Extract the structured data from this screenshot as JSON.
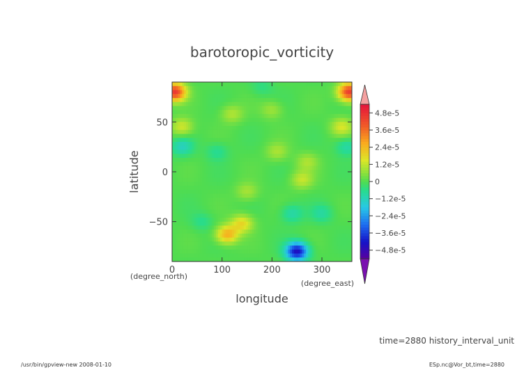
{
  "chart_data": {
    "type": "heatmap",
    "title": "barotoropic_vorticity",
    "xlabel": "longitude",
    "ylabel": "latitude",
    "x_unit": "(degree_east)",
    "y_unit": "(degree_north)",
    "xlim": [
      0,
      360
    ],
    "ylim": [
      -90,
      90
    ],
    "x_ticks": [
      0,
      100,
      200,
      300
    ],
    "y_ticks": [
      50,
      0,
      -50
    ],
    "colorbar": {
      "min": -5.4e-05,
      "max": 5.4e-05,
      "ticks": [
        {
          "value": 4.8e-05,
          "label": "4.8e-5"
        },
        {
          "value": 3.6e-05,
          "label": "3.6e-5"
        },
        {
          "value": 2.4e-05,
          "label": "2.4e-5"
        },
        {
          "value": 1.2e-05,
          "label": "1.2e-5"
        },
        {
          "value": 0,
          "label": "0"
        },
        {
          "value": -1.2e-05,
          "label": "−1.2e-5"
        },
        {
          "value": -2.4e-05,
          "label": "−2.4e-5"
        },
        {
          "value": -3.6e-05,
          "label": "−3.6e-5"
        },
        {
          "value": -4.8e-05,
          "label": "−4.8e-5"
        }
      ],
      "over_color": "#f4a0a0",
      "under_color": "#7a10b0"
    },
    "features": [
      {
        "lon": 5,
        "lat": 80,
        "value": 4.6e-05
      },
      {
        "lon": 355,
        "lat": 80,
        "value": 4.6e-05
      },
      {
        "lon": 20,
        "lat": 45,
        "value": 1.4e-05
      },
      {
        "lon": 340,
        "lat": 45,
        "value": 1.4e-05
      },
      {
        "lon": 120,
        "lat": 58,
        "value": 1e-05
      },
      {
        "lon": 200,
        "lat": 62,
        "value": 8e-06
      },
      {
        "lon": 210,
        "lat": 20,
        "value": 9e-06
      },
      {
        "lon": 270,
        "lat": 10,
        "value": 9e-06
      },
      {
        "lon": 260,
        "lat": -8,
        "value": 1.2e-05
      },
      {
        "lon": 150,
        "lat": -20,
        "value": 9e-06
      },
      {
        "lon": 110,
        "lat": -63,
        "value": 2.6e-05
      },
      {
        "lon": 140,
        "lat": -52,
        "value": 1.8e-05
      },
      {
        "lon": 20,
        "lat": 25,
        "value": -1.2e-05
      },
      {
        "lon": 350,
        "lat": 25,
        "value": -1e-05
      },
      {
        "lon": 90,
        "lat": 20,
        "value": -7e-06
      },
      {
        "lon": 240,
        "lat": -42,
        "value": -1e-05
      },
      {
        "lon": 300,
        "lat": -42,
        "value": -8e-06
      },
      {
        "lon": 250,
        "lat": -80,
        "value": -4.4e-05
      },
      {
        "lon": 60,
        "lat": -50,
        "value": -6e-06
      },
      {
        "lon": 180,
        "lat": 85,
        "value": -5e-06
      }
    ]
  },
  "footer": {
    "time_label": "time=2880  history_interval_unit",
    "program": "/usr/bin/gpview-new   2008-01-10",
    "source": "ESp.nc@Vor_bt,time=2880"
  }
}
